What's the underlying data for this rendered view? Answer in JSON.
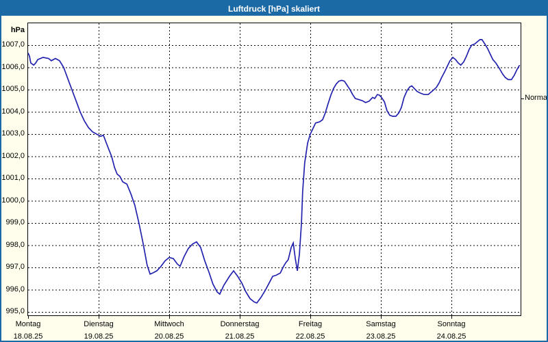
{
  "window": {
    "title": "Luftdruck [hPa] skaliert",
    "title_bar_color": "#1b6aa5",
    "border_color": "#1b6aa5",
    "background_color": "#fffdec"
  },
  "chart_data": {
    "type": "line",
    "title": "Luftdruck [hPa] skaliert",
    "unit_label": "hPa",
    "ylabel": "hPa",
    "y_min": 995,
    "y_max": 1007,
    "y_grid_interval": 1,
    "y_ticks": [
      "1007,0",
      "1006,0",
      "1005,0",
      "1004,0",
      "1003,0",
      "1002,0",
      "1001,0",
      "1000,0",
      "999,0",
      "998,0",
      "997,0",
      "996,0",
      "995,0"
    ],
    "x_days": [
      {
        "weekday": "Montag",
        "date": "18.08.25"
      },
      {
        "weekday": "Dienstag",
        "date": "19.08.25"
      },
      {
        "weekday": "Mittwoch",
        "date": "20.08.25"
      },
      {
        "weekday": "Donnerstag",
        "date": "21.08.25"
      },
      {
        "weekday": "Freitag",
        "date": "22.08.25"
      },
      {
        "weekday": "Samstag",
        "date": "23.08.25"
      },
      {
        "weekday": "Sonntag",
        "date": "24.08.25"
      }
    ],
    "x_range_hours": [
      0,
      167.5
    ],
    "grid": true,
    "legend": false,
    "line_color": "#2222ae",
    "right_axis_label": "Normal",
    "normal_value": 1004.6,
    "series": [
      {
        "name": "Luftdruck",
        "points_hours_hpa": [
          [
            0,
            1006.65
          ],
          [
            0.5,
            1006.5
          ],
          [
            0.9,
            1006.2
          ],
          [
            1.9,
            1006.1
          ],
          [
            2.6,
            1006.2
          ],
          [
            3.3,
            1006.35
          ],
          [
            5.1,
            1006.45
          ],
          [
            7,
            1006.4
          ],
          [
            7.9,
            1006.3
          ],
          [
            9.3,
            1006.4
          ],
          [
            10.7,
            1006.3
          ],
          [
            12.1,
            1006.0
          ],
          [
            13.5,
            1005.5
          ],
          [
            14.9,
            1005.0
          ],
          [
            16.3,
            1004.5
          ],
          [
            17.7,
            1004.0
          ],
          [
            19.1,
            1003.6
          ],
          [
            20.5,
            1003.3
          ],
          [
            21.9,
            1003.1
          ],
          [
            23.3,
            1003.0
          ],
          [
            24.7,
            1002.9
          ],
          [
            25.6,
            1002.95
          ],
          [
            26.6,
            1002.6
          ],
          [
            27.5,
            1002.3
          ],
          [
            28.4,
            1002.0
          ],
          [
            29.4,
            1001.5
          ],
          [
            30.3,
            1001.2
          ],
          [
            31.2,
            1001.1
          ],
          [
            32.2,
            1000.85
          ],
          [
            33.6,
            1000.75
          ],
          [
            35,
            1000.3
          ],
          [
            36.3,
            999.8
          ],
          [
            37.7,
            999.0
          ],
          [
            39.1,
            998.1
          ],
          [
            40.5,
            997.1
          ],
          [
            41.5,
            996.7
          ],
          [
            42.4,
            996.75
          ],
          [
            43.8,
            996.85
          ],
          [
            45.2,
            997.05
          ],
          [
            46.6,
            997.3
          ],
          [
            48,
            997.45
          ],
          [
            49.4,
            997.4
          ],
          [
            50.8,
            997.15
          ],
          [
            51.7,
            997.05
          ],
          [
            53.1,
            997.5
          ],
          [
            54.5,
            997.85
          ],
          [
            55.9,
            998.05
          ],
          [
            57.3,
            998.15
          ],
          [
            58.7,
            997.9
          ],
          [
            60.1,
            997.3
          ],
          [
            61.5,
            996.8
          ],
          [
            62.9,
            996.25
          ],
          [
            64.3,
            995.9
          ],
          [
            65.2,
            995.8
          ],
          [
            66.6,
            996.2
          ],
          [
            68.5,
            996.6
          ],
          [
            69.9,
            996.85
          ],
          [
            71.3,
            996.6
          ],
          [
            72.7,
            996.3
          ],
          [
            74.1,
            995.9
          ],
          [
            75.5,
            995.6
          ],
          [
            76.9,
            995.45
          ],
          [
            77.8,
            995.4
          ],
          [
            79.2,
            995.65
          ],
          [
            80.6,
            995.95
          ],
          [
            82,
            996.3
          ],
          [
            83.2,
            996.6
          ],
          [
            84.4,
            996.65
          ],
          [
            85.8,
            996.75
          ],
          [
            86.7,
            997.0
          ],
          [
            87.6,
            997.2
          ],
          [
            88.5,
            997.35
          ],
          [
            89.5,
            997.9
          ],
          [
            90.2,
            998.1
          ],
          [
            90.9,
            997.4
          ],
          [
            91.6,
            996.85
          ],
          [
            92.3,
            997.6
          ],
          [
            93,
            999.0
          ],
          [
            93.4,
            1000.4
          ],
          [
            94.1,
            1001.7
          ],
          [
            95.1,
            1002.6
          ],
          [
            96,
            1003.0
          ],
          [
            96.9,
            1003.25
          ],
          [
            97.8,
            1003.5
          ],
          [
            99.2,
            1003.55
          ],
          [
            100.2,
            1003.65
          ],
          [
            101.1,
            1003.95
          ],
          [
            102,
            1004.35
          ],
          [
            103,
            1004.75
          ],
          [
            103.9,
            1005.05
          ],
          [
            104.8,
            1005.25
          ],
          [
            105.7,
            1005.38
          ],
          [
            106.7,
            1005.42
          ],
          [
            107.6,
            1005.38
          ],
          [
            108.5,
            1005.2
          ],
          [
            109.5,
            1005.0
          ],
          [
            110.4,
            1004.78
          ],
          [
            111.3,
            1004.6
          ],
          [
            112.5,
            1004.55
          ],
          [
            113.7,
            1004.5
          ],
          [
            114.8,
            1004.42
          ],
          [
            116,
            1004.48
          ],
          [
            117.2,
            1004.65
          ],
          [
            117.9,
            1004.6
          ],
          [
            118.8,
            1004.78
          ],
          [
            119.5,
            1004.75
          ],
          [
            120.2,
            1004.65
          ],
          [
            121.2,
            1004.45
          ],
          [
            122.1,
            1004.05
          ],
          [
            123,
            1003.85
          ],
          [
            124,
            1003.8
          ],
          [
            125.1,
            1003.8
          ],
          [
            126.1,
            1003.95
          ],
          [
            127,
            1004.2
          ],
          [
            127.9,
            1004.65
          ],
          [
            128.9,
            1004.95
          ],
          [
            129.8,
            1005.12
          ],
          [
            130.5,
            1005.17
          ],
          [
            131.4,
            1005.05
          ],
          [
            132.3,
            1004.92
          ],
          [
            133.3,
            1004.85
          ],
          [
            134.7,
            1004.78
          ],
          [
            136.1,
            1004.78
          ],
          [
            137,
            1004.88
          ],
          [
            137.9,
            1004.98
          ],
          [
            138.9,
            1005.1
          ],
          [
            139.8,
            1005.3
          ],
          [
            140.7,
            1005.55
          ],
          [
            141.7,
            1005.8
          ],
          [
            142.6,
            1006.05
          ],
          [
            143.5,
            1006.3
          ],
          [
            144.5,
            1006.45
          ],
          [
            145.4,
            1006.35
          ],
          [
            146.3,
            1006.2
          ],
          [
            147.2,
            1006.1
          ],
          [
            148.2,
            1006.25
          ],
          [
            149.1,
            1006.5
          ],
          [
            150,
            1006.8
          ],
          [
            150.9,
            1007.0
          ],
          [
            151.9,
            1007.05
          ],
          [
            152.8,
            1007.15
          ],
          [
            153.7,
            1007.25
          ],
          [
            154.4,
            1007.25
          ],
          [
            155.4,
            1007.05
          ],
          [
            156.3,
            1006.85
          ],
          [
            157.2,
            1006.6
          ],
          [
            158.1,
            1006.35
          ],
          [
            159.1,
            1006.2
          ],
          [
            160.3,
            1005.95
          ],
          [
            161.4,
            1005.7
          ],
          [
            162.3,
            1005.55
          ],
          [
            163.3,
            1005.45
          ],
          [
            164.4,
            1005.45
          ],
          [
            165.4,
            1005.65
          ],
          [
            166.3,
            1005.9
          ],
          [
            167.2,
            1006.1
          ]
        ]
      }
    ]
  }
}
